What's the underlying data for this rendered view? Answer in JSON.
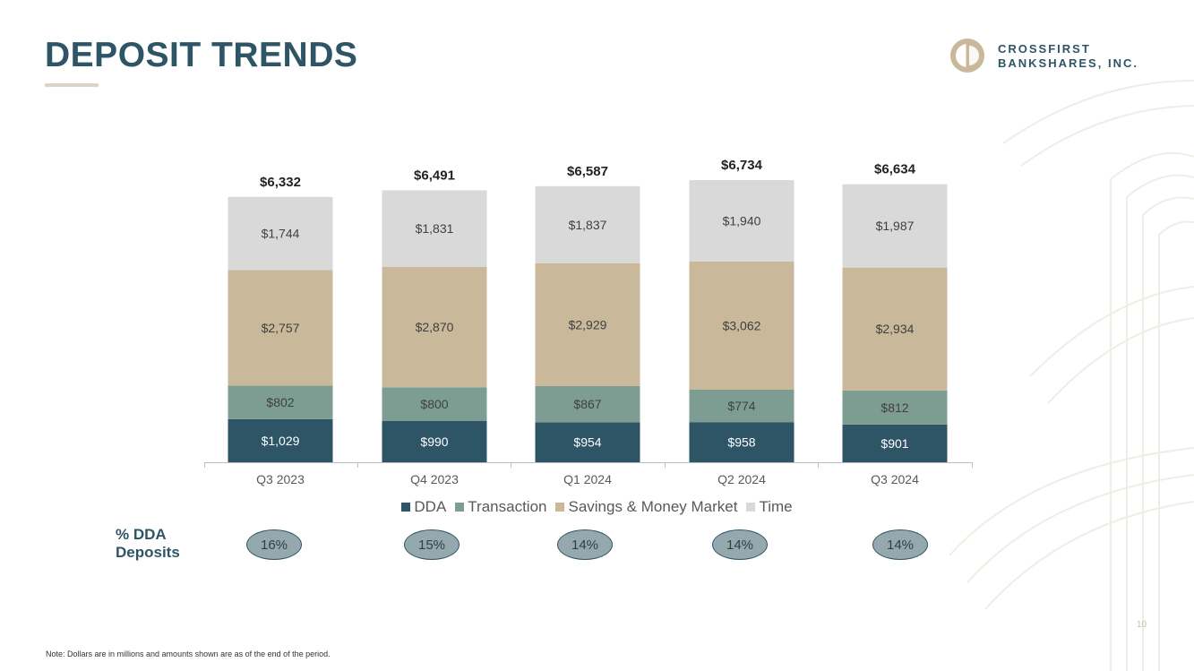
{
  "header": {
    "title": "DEPOSIT TRENDS"
  },
  "logo": {
    "line1": "CROSSFIRST",
    "line2": "BANKSHARES, INC."
  },
  "chart_data": {
    "type": "bar",
    "stacked": true,
    "categories": [
      "Q3 2023",
      "Q4 2023",
      "Q1 2024",
      "Q2 2024",
      "Q3 2024"
    ],
    "series": [
      {
        "name": "DDA",
        "color": "#2e5566",
        "values": [
          1029,
          990,
          954,
          958,
          901
        ],
        "labels": [
          "$1,029",
          "$990",
          "$954",
          "$958",
          "$901"
        ]
      },
      {
        "name": "Transaction",
        "color": "#7e9d92",
        "values": [
          802,
          800,
          867,
          774,
          812
        ],
        "labels": [
          "$802",
          "$800",
          "$867",
          "$774",
          "$812"
        ]
      },
      {
        "name": "Savings & Money Market",
        "color": "#c9b899",
        "values": [
          2757,
          2870,
          2929,
          3062,
          2934
        ],
        "labels": [
          "$2,757",
          "$2,870",
          "$2,929",
          "$3,062",
          "$2,934"
        ]
      },
      {
        "name": "Time",
        "color": "#d9d9d9",
        "values": [
          1744,
          1831,
          1837,
          1940,
          1987
        ],
        "labels": [
          "$1,744",
          "$1,831",
          "$1,837",
          "$1,940",
          "$1,987"
        ]
      }
    ],
    "totals": [
      6332,
      6491,
      6587,
      6734,
      6634
    ],
    "total_labels": [
      "$6,332",
      "$6,491",
      "$6,587",
      "$6,734",
      "$6,634"
    ],
    "units": "$ millions",
    "legend_position": "bottom",
    "grid": false
  },
  "dda_pct": {
    "label_line1": "% DDA",
    "label_line2": "Deposits",
    "values": [
      "16%",
      "15%",
      "14%",
      "14%",
      "14%"
    ]
  },
  "footer": {
    "note": "Note: Dollars are in millions and amounts shown are as of the end of the period.",
    "page_number": "10"
  },
  "colors": {
    "brand": "#2e5566",
    "accent": "#c9b899"
  }
}
